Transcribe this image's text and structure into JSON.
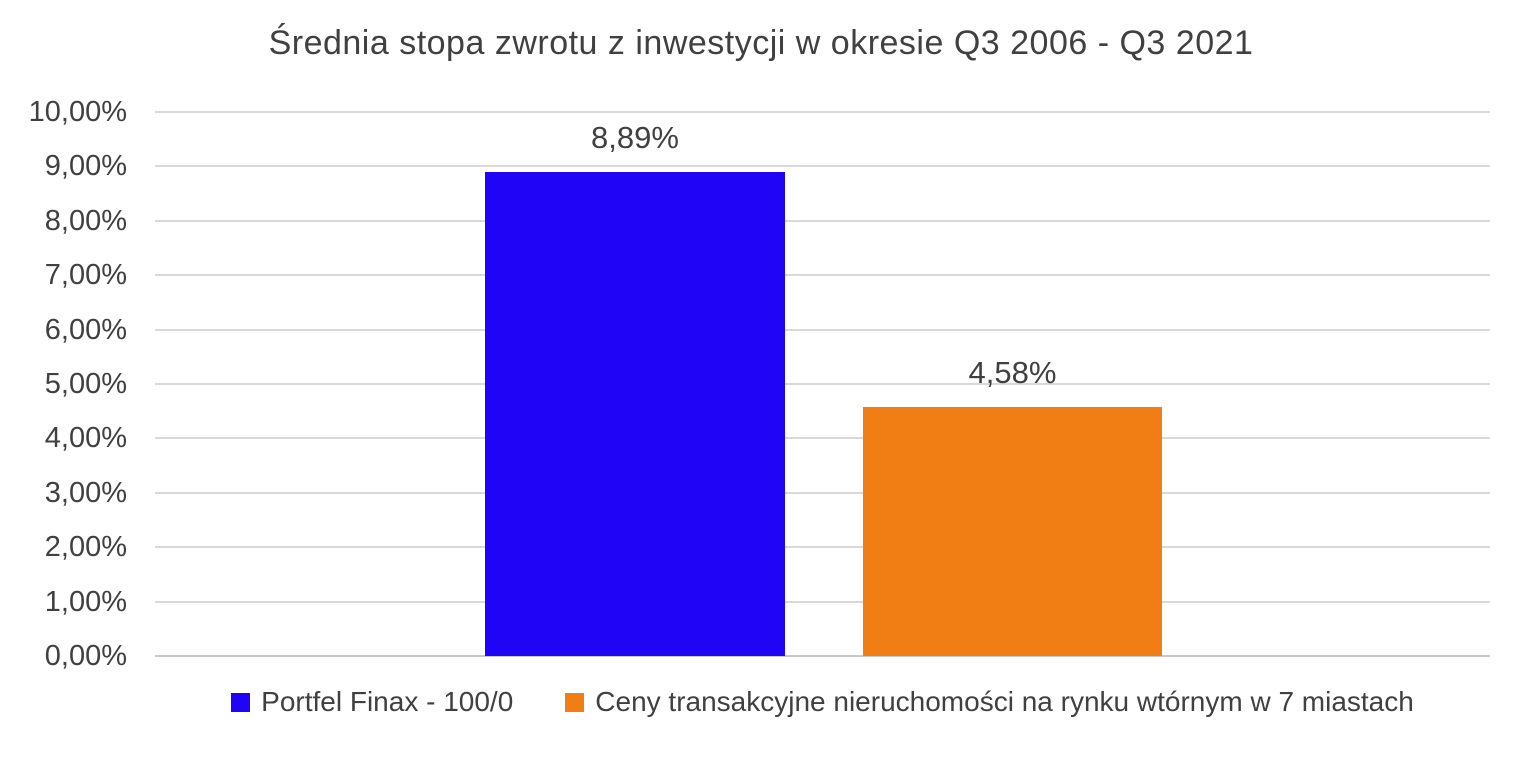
{
  "chart_data": {
    "type": "bar",
    "title": "Średnia stopa zwrotu z inwestycji w okresie Q3 2006 - Q3 2021",
    "xlabel": "",
    "ylabel": "",
    "ylim": [
      0,
      10
    ],
    "grid": "horizontal",
    "legend_position": "bottom",
    "yticks": [
      "10,00%",
      "9,00%",
      "8,00%",
      "7,00%",
      "6,00%",
      "5,00%",
      "4,00%",
      "3,00%",
      "2,00%",
      "1,00%",
      "0,00%"
    ],
    "series": [
      {
        "name": "Portfel Finax - 100/0",
        "value": 8.89,
        "data_label": "8,89%",
        "color": "#2004f5"
      },
      {
        "name": "Ceny transakcyjne nieruchomości na rynku wtórnym w 7 miastach",
        "value": 4.58,
        "data_label": "4,58%",
        "color": "#f07e14"
      }
    ],
    "colors": {
      "text": "#404040",
      "gridline": "#d9d9d9",
      "background": "#ffffff"
    }
  }
}
